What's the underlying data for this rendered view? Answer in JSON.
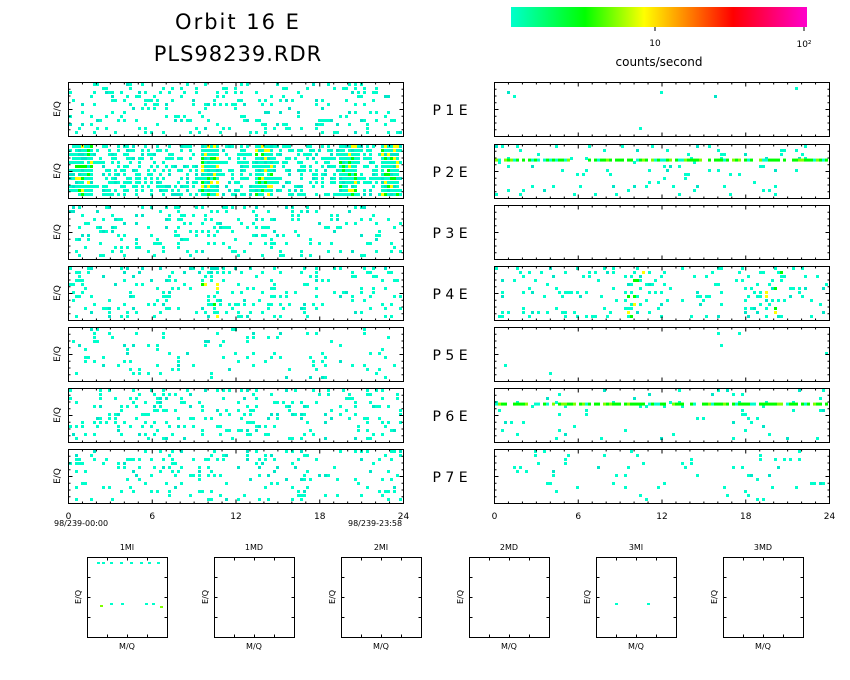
{
  "header": {
    "title_line1": "Orbit 16 E",
    "title_line2": "PLS98239.RDR"
  },
  "colorbar": {
    "tick_labels": [
      "10",
      "10²"
    ],
    "unit_label": "counts/second",
    "colors": [
      "#00ffcc",
      "#00ff00",
      "#ffff00",
      "#ff8000",
      "#ff0000",
      "#ff00cc"
    ]
  },
  "panel_labels": [
    "P 1 E",
    "P 2 E",
    "P 3 E",
    "P 4 E",
    "P 5 E",
    "P 6 E",
    "P 7 E"
  ],
  "y_axis_label": "E/Q",
  "x_axis": {
    "ticks": [
      0,
      6,
      12,
      18,
      24
    ],
    "left_start": "98/239-00:00",
    "left_end": "98/239-23:58"
  },
  "small_panels": {
    "titles": [
      "1MI",
      "1MD",
      "2MI",
      "2MD",
      "3MI",
      "3MD"
    ],
    "x_label": "M/Q",
    "y_label": "E/Q"
  },
  "chart_data": {
    "type": "heatmap",
    "xlabel": "",
    "ylabel": "E/Q",
    "xlim": [
      0,
      24
    ],
    "scale": "log",
    "colorbar_ticks": [
      "10",
      "10²"
    ],
    "colorbar_label": "counts/second",
    "left_column": [
      {
        "panel": "P 1",
        "density": 0.16,
        "features": []
      },
      {
        "panel": "P 2",
        "density": 0.42,
        "features": [
          "hot vertical streaks near hours 1, 10, 14, 20, 23"
        ]
      },
      {
        "panel": "P 3",
        "density": 0.16,
        "features": []
      },
      {
        "panel": "P 4",
        "density": 0.14,
        "features": [
          "enhancement near hour 10"
        ]
      },
      {
        "panel": "P 5",
        "density": 0.06,
        "features": []
      },
      {
        "panel": "P 6",
        "density": 0.14,
        "features": []
      },
      {
        "panel": "P 7",
        "density": 0.12,
        "features": []
      }
    ],
    "right_column": [
      {
        "panel": "P 1",
        "density": 0.002,
        "features": []
      },
      {
        "panel": "P 2",
        "density": 0.05,
        "features": [
          "continuous band near E/Q row 2 of 8, hours 0-24"
        ]
      },
      {
        "panel": "P 3",
        "density": 0.0,
        "features": []
      },
      {
        "panel": "P 4",
        "density": 0.12,
        "features": [
          "enhancement near hours 10 and 20"
        ]
      },
      {
        "panel": "P 5",
        "density": 0.008,
        "features": []
      },
      {
        "panel": "P 6",
        "density": 0.05,
        "features": [
          "continuous band near E/Q row 2 of 8"
        ]
      },
      {
        "panel": "P 7",
        "density": 0.03,
        "features": []
      }
    ],
    "small_panels": [
      {
        "title": "1MI",
        "counts": "sparse row near top and row near 55% height"
      },
      {
        "title": "1MD",
        "counts": "none"
      },
      {
        "title": "2MI",
        "counts": "none"
      },
      {
        "title": "2MD",
        "counts": "none"
      },
      {
        "title": "3MI",
        "counts": "two points near 55% height"
      },
      {
        "title": "3MD",
        "counts": "none"
      }
    ]
  }
}
